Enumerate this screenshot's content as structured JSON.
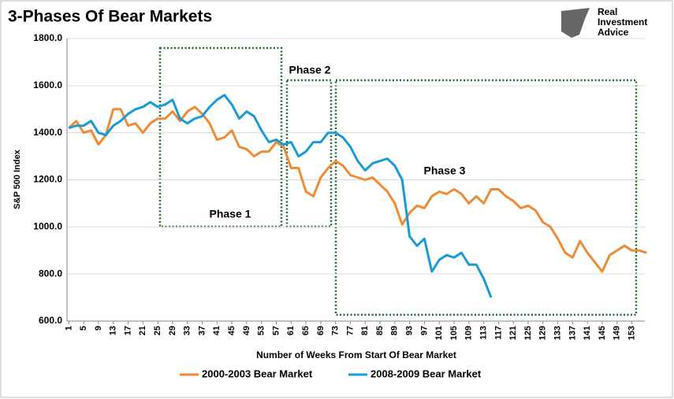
{
  "chart_data": {
    "type": "line",
    "title": "3-Phases Of Bear Markets",
    "logo": [
      "Real",
      "Investment",
      "Advice"
    ],
    "y_label": "S&P 500 Index",
    "x_label": "Number of Weeks From Start Of Bear Market",
    "annotations": [
      "Phase 1",
      "Phase 2",
      "Phase 3"
    ],
    "x": [
      1,
      3,
      5,
      7,
      9,
      11,
      13,
      15,
      17,
      19,
      21,
      23,
      25,
      27,
      29,
      31,
      33,
      35,
      37,
      39,
      41,
      43,
      45,
      47,
      49,
      51,
      53,
      55,
      57,
      59,
      61,
      63,
      65,
      67,
      69,
      71,
      73,
      75,
      77,
      79,
      81,
      83,
      85,
      87,
      89,
      91,
      93,
      95,
      97,
      99,
      101,
      103,
      105,
      107,
      109,
      111,
      113,
      115,
      117,
      119,
      121,
      123,
      125,
      127,
      129,
      131,
      133,
      135,
      137,
      139,
      141,
      143,
      145,
      147,
      149,
      151,
      153,
      155,
      157
    ],
    "series": [
      {
        "name": "2000-2003 Bear Market",
        "color": "#ef8a36",
        "values": [
          1420,
          1450,
          1400,
          1410,
          1350,
          1390,
          1500,
          1500,
          1430,
          1440,
          1400,
          1440,
          1460,
          1460,
          1490,
          1450,
          1490,
          1510,
          1480,
          1440,
          1370,
          1380,
          1410,
          1340,
          1330,
          1300,
          1320,
          1320,
          1360,
          1340,
          1250,
          1250,
          1150,
          1130,
          1210,
          1250,
          1280,
          1260,
          1220,
          1210,
          1200,
          1210,
          1180,
          1150,
          1100,
          1010,
          1060,
          1090,
          1080,
          1130,
          1150,
          1140,
          1160,
          1140,
          1100,
          1130,
          1100,
          1160,
          1160,
          1130,
          1110,
          1080,
          1090,
          1070,
          1020,
          1000,
          950,
          890,
          870,
          940,
          890,
          850,
          810,
          880,
          900,
          920,
          900,
          900,
          890
        ]
      },
      {
        "name": "2008-2009 Bear Market",
        "color": "#1a9bd7",
        "values": [
          1420,
          1430,
          1430,
          1450,
          1400,
          1390,
          1430,
          1450,
          1480,
          1500,
          1510,
          1530,
          1510,
          1520,
          1540,
          1460,
          1440,
          1460,
          1470,
          1510,
          1540,
          1560,
          1520,
          1460,
          1490,
          1470,
          1410,
          1360,
          1370,
          1350,
          1360,
          1300,
          1320,
          1360,
          1360,
          1400,
          1400,
          1380,
          1340,
          1280,
          1240,
          1270,
          1280,
          1290,
          1260,
          1200,
          960,
          920,
          950,
          810,
          860,
          880,
          870,
          890,
          840,
          840,
          780,
          700,
          null,
          null,
          null,
          null,
          null,
          null,
          null,
          null,
          null,
          null,
          null,
          null,
          null,
          null,
          null,
          null,
          null,
          null,
          null,
          null,
          null
        ]
      }
    ],
    "xlim": [
      0.5,
      156.5
    ],
    "ylim": [
      600,
      1800
    ],
    "xticks": [
      1,
      5,
      9,
      13,
      17,
      21,
      25,
      29,
      33,
      37,
      41,
      45,
      49,
      53,
      57,
      61,
      65,
      69,
      73,
      77,
      81,
      85,
      89,
      93,
      97,
      101,
      105,
      109,
      113,
      117,
      121,
      125,
      129,
      133,
      137,
      141,
      145,
      149,
      153
    ],
    "yticks": [
      {
        "value": 600,
        "label": "600.0"
      },
      {
        "value": 800,
        "label": "800.0"
      },
      {
        "value": 1000,
        "label": "1000.0"
      },
      {
        "value": 1200,
        "label": "1200.0"
      },
      {
        "value": 1400,
        "label": "1400.0"
      },
      {
        "value": 1600,
        "label": "1600.0"
      },
      {
        "value": 1800,
        "label": "1800.0"
      }
    ],
    "grid": true,
    "legend": "bottom"
  }
}
